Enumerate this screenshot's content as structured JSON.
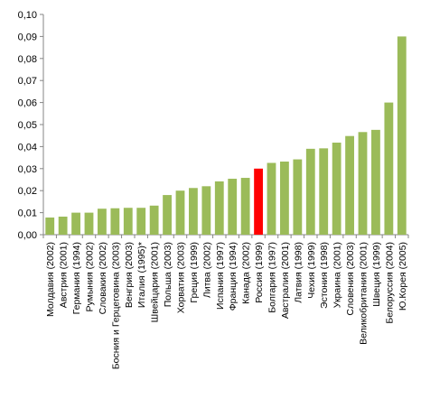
{
  "chart_data": {
    "type": "bar",
    "title": "",
    "xlabel": "",
    "ylabel": "",
    "ylim": [
      0,
      0.1
    ],
    "y_ticks": [
      "0,00",
      "0,01",
      "0,02",
      "0,03",
      "0,04",
      "0,05",
      "0,06",
      "0,07",
      "0,08",
      "0,09",
      "0,10"
    ],
    "grid": false,
    "colors": {
      "default": "#9BBB59",
      "highlight": "#FF0000"
    },
    "highlight_category": "Россия (1999)",
    "categories": [
      "Молдавия (2002)",
      "Австрия (2001)",
      "Германия (1994)",
      "Румыния (2002)",
      "Словакия (2002)",
      "Босния и Герцеговина (2003)",
      "Венгрия (2003)",
      "Италия (1995)*",
      "Швейцария (2001)",
      "Польша (2003)",
      "Хорватия (2003)",
      "Греция (1999)",
      "Литва (2002)",
      "Испания (1997)",
      "Франция (1994)",
      "Канада (2002)",
      "Россия (1999)",
      "Болгария (1997)",
      "Австралия (2001)",
      "Латвия (1998)",
      "Чехия (1999)",
      "Эстония (1998)",
      "Украина (2001)",
      "Словения (2003)",
      "Великобритания (2001)",
      "Швеция (1999)",
      "Белоруссия (2004)",
      "Ю.Корея (2005)"
    ],
    "values": [
      0.0078,
      0.0082,
      0.01,
      0.01,
      0.0118,
      0.012,
      0.0122,
      0.0122,
      0.0132,
      0.018,
      0.02,
      0.0212,
      0.022,
      0.0242,
      0.0254,
      0.0258,
      0.03,
      0.0326,
      0.0332,
      0.0342,
      0.039,
      0.0392,
      0.0418,
      0.0448,
      0.0466,
      0.0476,
      0.06,
      0.09
    ]
  }
}
